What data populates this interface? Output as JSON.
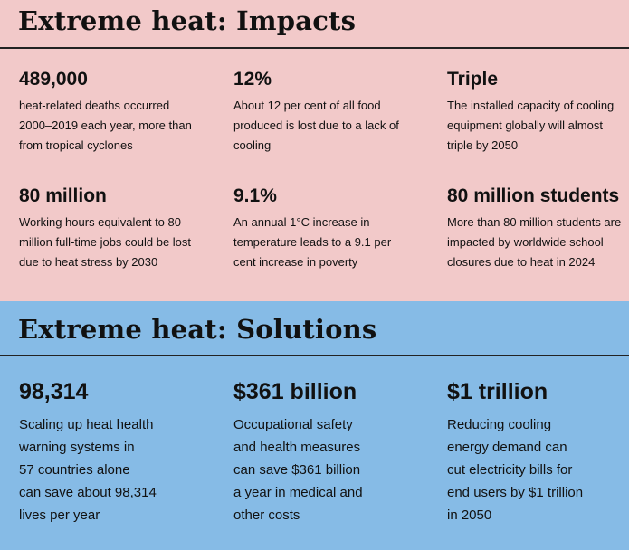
{
  "impacts": {
    "title": "Extreme heat: Impacts",
    "stats": [
      {
        "value": "489,000",
        "desc": "heat-related deaths occurred\n2000–2019 each year, more than\nfrom tropical cyclones"
      },
      {
        "value": "12%",
        "desc": "About 12 per cent of all food\nproduced is lost due to a lack of\ncooling"
      },
      {
        "value": "Triple",
        "desc": "The installed capacity of cooling\nequipment globally will almost\ntriple by 2050"
      },
      {
        "value": "80 million",
        "desc": "Working hours equivalent to 80\nmillion full-time jobs could be lost\ndue to heat stress by 2030"
      },
      {
        "value": "9.1%",
        "desc": "An annual 1°C increase in\ntemperature leads to a 9.1 per\ncent increase in poverty"
      },
      {
        "value": "80 million students",
        "desc": "More than 80 million students are\nimpacted by worldwide school\nclosures due to heat in 2024"
      }
    ]
  },
  "solutions": {
    "title": "Extreme heat: Solutions",
    "stats": [
      {
        "value": "98,314",
        "desc": "Scaling up heat health\nwarning systems in\n57 countries alone\ncan save about 98,314\nlives per year"
      },
      {
        "value": "$361 billion",
        "desc": "Occupational safety\nand health measures\ncan save $361 billion\na year in medical and\nother costs"
      },
      {
        "value": "$1 trillion",
        "desc": "Reducing cooling\nenergy demand can\ncut electricity bills for\nend users by $1 trillion\nin 2050"
      }
    ]
  },
  "colors": {
    "impacts_bg": "#f2c9c9",
    "solutions_bg": "#86bbe6",
    "text": "#111111"
  }
}
